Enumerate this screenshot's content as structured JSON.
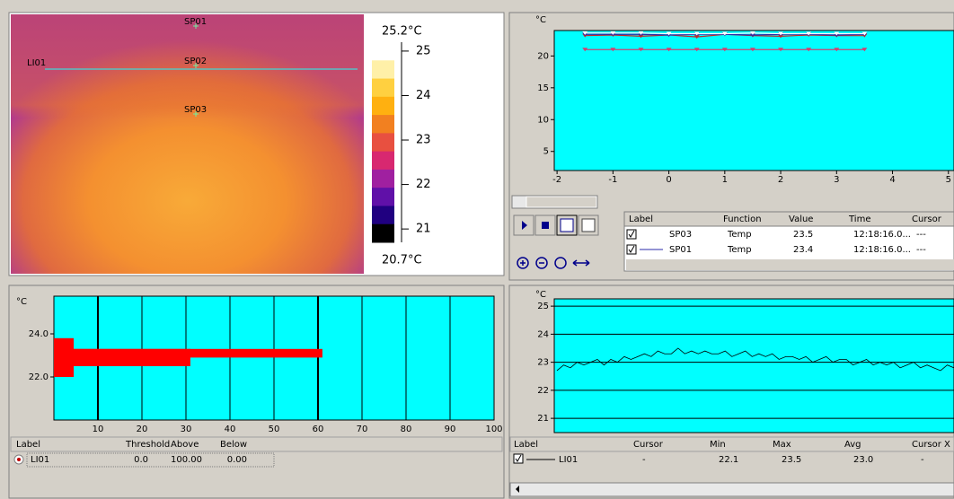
{
  "thermal_image": {
    "spots": [
      "SP01",
      "SP02",
      "SP03"
    ],
    "line": "LI01",
    "scale_max": "25.2°C",
    "scale_min": "20.7°C",
    "scale_lim": [
      20.7,
      25.2
    ],
    "scale_ticks": [
      25,
      24,
      23,
      22,
      21
    ]
  },
  "trend_chart": {
    "type": "line",
    "y_unit": "°C",
    "ylim": [
      2,
      24
    ],
    "yticks": [
      5,
      10,
      15,
      20
    ],
    "xlim": [
      -2.05,
      5.1
    ],
    "xticks": [
      -2,
      -1,
      0,
      1,
      2,
      3,
      4,
      5
    ],
    "x": [
      -1.5,
      -1,
      -0.5,
      0,
      0.5,
      1,
      1.5,
      2,
      2.5,
      3,
      3.5
    ],
    "series": [
      {
        "name": "SP03",
        "color": "#ffffff",
        "values": [
          23.6,
          23.6,
          23.6,
          23.5,
          23.5,
          23.5,
          23.6,
          23.5,
          23.5,
          23.5,
          23.5
        ]
      },
      {
        "name": "SP01",
        "color": "#2a2aa8",
        "values": [
          23.4,
          23.4,
          23.4,
          23.3,
          23.4,
          23.4,
          23.3,
          23.4,
          23.4,
          23.3,
          23.4
        ]
      },
      {
        "color": "#c02828",
        "values": [
          23.2,
          23.3,
          23.1,
          23.3,
          23.0,
          23.4,
          23.2,
          23.1,
          23.3,
          23.2,
          23.2
        ]
      },
      {
        "color": "#d04070",
        "values": [
          21,
          21,
          21,
          21,
          21,
          21,
          21,
          21,
          21,
          21,
          21
        ]
      }
    ]
  },
  "trend_table": {
    "headers": [
      "Label",
      "Function",
      "Value",
      "Time",
      "Cursor"
    ],
    "rows": [
      [
        "SP03",
        "Temp",
        "23.5",
        "12:18:16.0...",
        "---"
      ],
      [
        "SP01",
        "Temp",
        "23.4",
        "12:18:16.0...",
        "---"
      ]
    ]
  },
  "histogram": {
    "type": "bar",
    "y_unit": "°C",
    "ylim": [
      20,
      25.75
    ],
    "yticks": [
      {
        "value": 24,
        "label": "24.0"
      },
      {
        "value": 22,
        "label": "22.0"
      }
    ],
    "xlim": [
      0,
      100
    ],
    "xticks": [
      10,
      20,
      30,
      40,
      50,
      60,
      70,
      80,
      90,
      100
    ],
    "color": "#ff0000",
    "bars": [
      {
        "x": 4.5,
        "low": 22.0,
        "high": 23.8
      },
      {
        "x": 31,
        "low": 22.5,
        "high": 23.3
      },
      {
        "x": 61,
        "low": 22.9,
        "high": 23.3
      }
    ]
  },
  "histogram_table": {
    "headers": [
      "Label",
      "Threshold",
      "Above",
      "Below"
    ],
    "rows": [
      [
        "LI01",
        "0.0",
        "100.00",
        "0.00"
      ]
    ]
  },
  "profile_chart": {
    "type": "line",
    "y_unit": "°C",
    "ylim": [
      20.49,
      25.26
    ],
    "yticks": [
      25,
      24,
      23,
      22,
      21
    ],
    "color": "#000000",
    "values": [
      22.7,
      22.9,
      22.8,
      23.0,
      22.9,
      23.0,
      23.1,
      22.9,
      23.1,
      23.0,
      23.2,
      23.1,
      23.2,
      23.3,
      23.2,
      23.4,
      23.3,
      23.3,
      23.5,
      23.3,
      23.4,
      23.3,
      23.4,
      23.3,
      23.3,
      23.4,
      23.2,
      23.3,
      23.4,
      23.2,
      23.3,
      23.2,
      23.3,
      23.1,
      23.2,
      23.2,
      23.1,
      23.2,
      23.0,
      23.1,
      23.2,
      23.0,
      23.1,
      23.1,
      22.9,
      23.0,
      23.1,
      22.9,
      23.0,
      22.9,
      23.0,
      22.8,
      22.9,
      23.0,
      22.8,
      22.9,
      22.8,
      22.7,
      22.9,
      22.8
    ]
  },
  "profile_table": {
    "headers": [
      "Label",
      "Cursor",
      "Min",
      "Max",
      "Avg",
      "Cursor X"
    ],
    "rows": [
      [
        "LI01",
        "-",
        "22.1",
        "23.5",
        "23.0",
        "-"
      ]
    ]
  }
}
